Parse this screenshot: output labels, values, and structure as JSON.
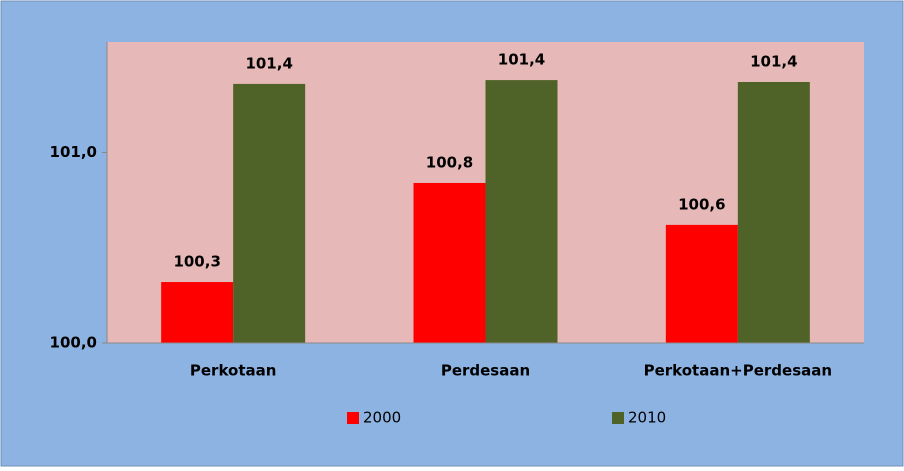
{
  "chart_data": {
    "type": "bar",
    "categories": [
      "Perkotaan",
      "Perdesaan",
      "Perkotaan+Perdesaan"
    ],
    "series": [
      {
        "name": "2000",
        "color": "#ff0000",
        "values": [
          100.32,
          100.84,
          100.62
        ],
        "value_labels": [
          "100,3",
          "100,8",
          "100,6"
        ]
      },
      {
        "name": "2010",
        "color": "#4f6228",
        "values": [
          101.36,
          101.38,
          101.37
        ],
        "value_labels": [
          "101,4",
          "101,4",
          "101,4"
        ]
      }
    ],
    "ylim": [
      100,
      101.58
    ],
    "yticks": [
      {
        "value": 100,
        "label": "100,0"
      },
      {
        "value": 101,
        "label": "101,0"
      }
    ],
    "legend": "bottom"
  }
}
